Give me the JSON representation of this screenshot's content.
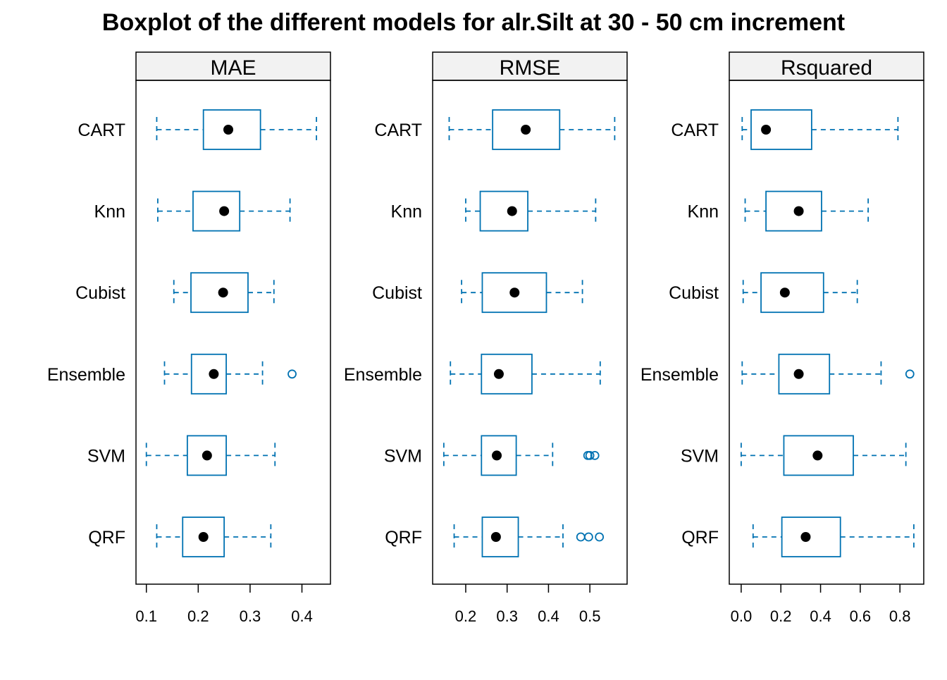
{
  "chart_data": {
    "type": "boxplot",
    "title": "Boxplot of the different models for alr.Silt at 30 - 50 cm increment",
    "categories": [
      "CART",
      "Knn",
      "Cubist",
      "Ensemble",
      "SVM",
      "QRF"
    ],
    "grid": false,
    "colors": {
      "box": "#0072B2",
      "median": "#000000",
      "strip_bg": "#f2f2f2",
      "frame": "#000000"
    },
    "panels": [
      {
        "name": "MAE",
        "xlim": [
          0.08,
          0.455
        ],
        "xticks": [
          0.1,
          0.2,
          0.3,
          0.4
        ],
        "tick_labels": [
          "0.1",
          "0.2",
          "0.3",
          "0.4"
        ],
        "stats": [
          {
            "model": "CART",
            "min": 0.12,
            "q1": 0.21,
            "median": 0.258,
            "q3": 0.32,
            "max": 0.428,
            "outliers": []
          },
          {
            "model": "Knn",
            "min": 0.122,
            "q1": 0.19,
            "median": 0.25,
            "q3": 0.28,
            "max": 0.377,
            "outliers": []
          },
          {
            "model": "Cubist",
            "min": 0.153,
            "q1": 0.186,
            "median": 0.248,
            "q3": 0.296,
            "max": 0.346,
            "outliers": []
          },
          {
            "model": "Ensemble",
            "min": 0.135,
            "q1": 0.187,
            "median": 0.23,
            "q3": 0.254,
            "max": 0.324,
            "outliers": [
              0.381
            ]
          },
          {
            "model": "SVM",
            "min": 0.1,
            "q1": 0.179,
            "median": 0.217,
            "q3": 0.254,
            "max": 0.348,
            "outliers": []
          },
          {
            "model": "QRF",
            "min": 0.12,
            "q1": 0.17,
            "median": 0.21,
            "q3": 0.25,
            "max": 0.34,
            "outliers": []
          }
        ]
      },
      {
        "name": "RMSE",
        "xlim": [
          0.12,
          0.59
        ],
        "xticks": [
          0.2,
          0.3,
          0.4,
          0.5
        ],
        "tick_labels": [
          "0.2",
          "0.3",
          "0.4",
          "0.5"
        ],
        "stats": [
          {
            "model": "CART",
            "min": 0.16,
            "q1": 0.265,
            "median": 0.345,
            "q3": 0.427,
            "max": 0.56,
            "outliers": []
          },
          {
            "model": "Knn",
            "min": 0.2,
            "q1": 0.235,
            "median": 0.312,
            "q3": 0.35,
            "max": 0.514,
            "outliers": []
          },
          {
            "model": "Cubist",
            "min": 0.19,
            "q1": 0.24,
            "median": 0.318,
            "q3": 0.395,
            "max": 0.482,
            "outliers": []
          },
          {
            "model": "Ensemble",
            "min": 0.163,
            "q1": 0.238,
            "median": 0.28,
            "q3": 0.36,
            "max": 0.525,
            "outliers": []
          },
          {
            "model": "SVM",
            "min": 0.147,
            "q1": 0.238,
            "median": 0.275,
            "q3": 0.322,
            "max": 0.41,
            "outliers": [
              0.495,
              0.5,
              0.512
            ]
          },
          {
            "model": "QRF",
            "min": 0.172,
            "q1": 0.24,
            "median": 0.273,
            "q3": 0.327,
            "max": 0.435,
            "outliers": [
              0.478,
              0.497,
              0.523
            ]
          }
        ]
      },
      {
        "name": "Rsquared",
        "xlim": [
          -0.06,
          0.92
        ],
        "xticks": [
          0.0,
          0.2,
          0.4,
          0.6,
          0.8
        ],
        "tick_labels": [
          "0.0",
          "0.2",
          "0.4",
          "0.6",
          "0.8"
        ],
        "stats": [
          {
            "model": "CART",
            "min": 0.005,
            "q1": 0.05,
            "median": 0.125,
            "q3": 0.355,
            "max": 0.79,
            "outliers": []
          },
          {
            "model": "Knn",
            "min": 0.02,
            "q1": 0.125,
            "median": 0.29,
            "q3": 0.405,
            "max": 0.64,
            "outliers": []
          },
          {
            "model": "Cubist",
            "min": 0.01,
            "q1": 0.1,
            "median": 0.22,
            "q3": 0.415,
            "max": 0.585,
            "outliers": []
          },
          {
            "model": "Ensemble",
            "min": 0.005,
            "q1": 0.19,
            "median": 0.29,
            "q3": 0.445,
            "max": 0.705,
            "outliers": [
              0.85
            ]
          },
          {
            "model": "SVM",
            "min": 0.0,
            "q1": 0.215,
            "median": 0.385,
            "q3": 0.565,
            "max": 0.83,
            "outliers": []
          },
          {
            "model": "QRF",
            "min": 0.06,
            "q1": 0.205,
            "median": 0.325,
            "q3": 0.5,
            "max": 0.87,
            "outliers": []
          }
        ]
      }
    ]
  }
}
